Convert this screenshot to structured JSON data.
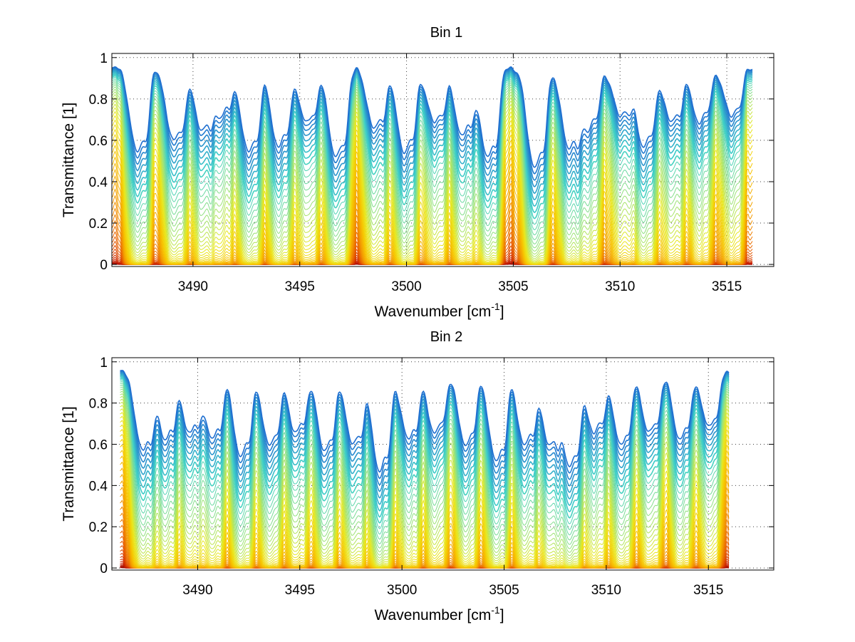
{
  "chart_data": [
    {
      "type": "line",
      "title": "Bin 1",
      "xlabel": "Wavenumber [cm",
      "xlabel_sup": "-1",
      "xlabel_end": "]",
      "ylabel": "Transmittance [1]",
      "xlim": [
        3486.2,
        3517.2
      ],
      "ylim": [
        -0.01,
        1.02
      ],
      "x_data_range": [
        3486.2,
        3516.2
      ],
      "xticks": [
        3490,
        3495,
        3500,
        3505,
        3510,
        3515
      ],
      "yticks": [
        0,
        0.2,
        0.4,
        0.6,
        0.8,
        1
      ],
      "ytick_labels": [
        "0",
        "0.2",
        "0.4",
        "0.6",
        "0.8",
        "1"
      ],
      "grid": true,
      "legend": "none",
      "colormap": [
        "#8b0000",
        "#c81e00",
        "#e85d00",
        "#f39a00",
        "#f7c600",
        "#e8e820",
        "#9be37a",
        "#3fd0c8",
        "#1f6fd0"
      ],
      "n_series": 60,
      "absorption_lines": [
        {
          "x": 3487.4,
          "depth": 0.6
        },
        {
          "x": 3489.1,
          "depth": 0.5
        },
        {
          "x": 3490.4,
          "depth": 0.4
        },
        {
          "x": 3491.3,
          "depth": 0.3
        },
        {
          "x": 3492.6,
          "depth": 0.6
        },
        {
          "x": 3494.0,
          "depth": 0.55
        },
        {
          "x": 3495.3,
          "depth": 0.35
        },
        {
          "x": 3496.7,
          "depth": 0.65
        },
        {
          "x": 3498.5,
          "depth": 0.4
        },
        {
          "x": 3499.9,
          "depth": 0.6
        },
        {
          "x": 3501.3,
          "depth": 0.35
        },
        {
          "x": 3502.6,
          "depth": 0.45
        },
        {
          "x": 3503.8,
          "depth": 0.65
        },
        {
          "x": 3506.0,
          "depth": 0.75
        },
        {
          "x": 3507.6,
          "depth": 0.55
        },
        {
          "x": 3508.5,
          "depth": 0.4
        },
        {
          "x": 3510.0,
          "depth": 0.3
        },
        {
          "x": 3511.1,
          "depth": 0.55
        },
        {
          "x": 3512.4,
          "depth": 0.35
        },
        {
          "x": 3513.7,
          "depth": 0.35
        },
        {
          "x": 3515.2,
          "depth": 0.3
        }
      ]
    },
    {
      "type": "line",
      "title": "Bin 2",
      "xlabel": "Wavenumber [cm",
      "xlabel_sup": "-1",
      "xlabel_end": "]",
      "ylabel": "Transmittance [1]",
      "xlim": [
        3485.8,
        3518.2
      ],
      "ylim": [
        -0.01,
        1.02
      ],
      "x_data_range": [
        3486.2,
        3516.0
      ],
      "xticks": [
        3490,
        3495,
        3500,
        3505,
        3510,
        3515
      ],
      "yticks": [
        0,
        0.2,
        0.4,
        0.6,
        0.8,
        1
      ],
      "ytick_labels": [
        "0",
        "0.2",
        "0.4",
        "0.6",
        "0.8",
        "1"
      ],
      "grid": true,
      "legend": "none",
      "colormap": [
        "#8b0000",
        "#c81e00",
        "#e85d00",
        "#f39a00",
        "#f7c600",
        "#e8e820",
        "#9be37a",
        "#3fd0c8",
        "#1f6fd0"
      ],
      "n_series": 60,
      "absorption_lines": [
        {
          "x": 3487.3,
          "depth": 0.55
        },
        {
          "x": 3488.4,
          "depth": 0.45
        },
        {
          "x": 3489.6,
          "depth": 0.4
        },
        {
          "x": 3490.7,
          "depth": 0.45
        },
        {
          "x": 3492.1,
          "depth": 0.6
        },
        {
          "x": 3493.5,
          "depth": 0.5
        },
        {
          "x": 3494.8,
          "depth": 0.4
        },
        {
          "x": 3496.2,
          "depth": 0.55
        },
        {
          "x": 3497.6,
          "depth": 0.5
        },
        {
          "x": 3498.9,
          "depth": 0.75
        },
        {
          "x": 3500.3,
          "depth": 0.45
        },
        {
          "x": 3501.6,
          "depth": 0.4
        },
        {
          "x": 3503.1,
          "depth": 0.5
        },
        {
          "x": 3504.6,
          "depth": 0.65
        },
        {
          "x": 3506.0,
          "depth": 0.5
        },
        {
          "x": 3507.2,
          "depth": 0.5
        },
        {
          "x": 3508.2,
          "depth": 0.7
        },
        {
          "x": 3509.4,
          "depth": 0.4
        },
        {
          "x": 3510.7,
          "depth": 0.5
        },
        {
          "x": 3512.1,
          "depth": 0.4
        },
        {
          "x": 3513.6,
          "depth": 0.45
        },
        {
          "x": 3515.0,
          "depth": 0.35
        }
      ]
    }
  ]
}
